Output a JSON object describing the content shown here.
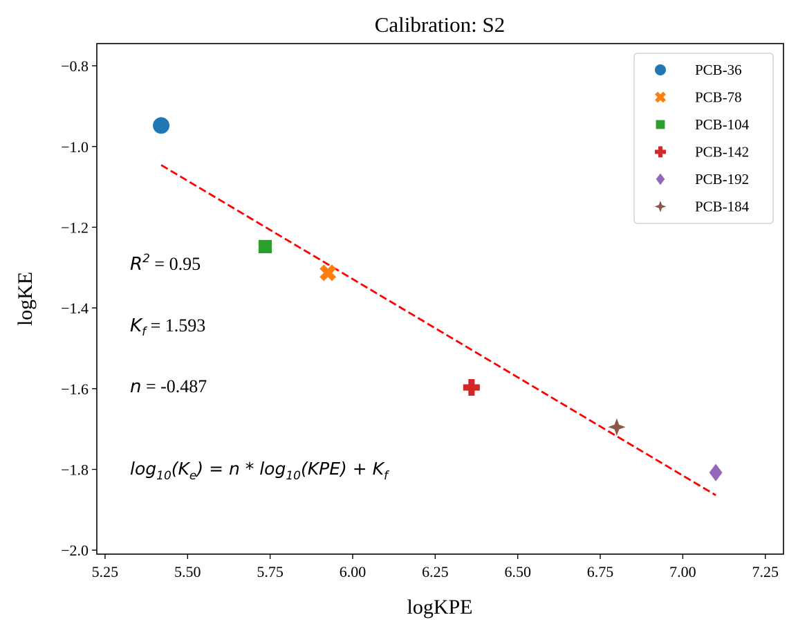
{
  "chart_data": {
    "type": "scatter",
    "title": "Calibration: S2",
    "xlabel": "logKPE",
    "ylabel": "logKE",
    "xlim": [
      5.225,
      7.305
    ],
    "ylim": [
      -2.01,
      -0.745
    ],
    "xticks": [
      5.25,
      5.5,
      5.75,
      6.0,
      6.25,
      6.5,
      6.75,
      7.0,
      7.25
    ],
    "xtick_labels": [
      "5.25",
      "5.50",
      "5.75",
      "6.00",
      "6.25",
      "6.50",
      "6.75",
      "7.00",
      "7.25"
    ],
    "yticks": [
      -0.8,
      -1.0,
      -1.2,
      -1.4,
      -1.6,
      -1.8,
      -2.0
    ],
    "ytick_labels": [
      "−0.8",
      "−1.0",
      "−1.2",
      "−1.4",
      "−1.6",
      "−1.8",
      "−2.0"
    ],
    "grid": false,
    "legend_position": "top-right",
    "series": [
      {
        "name": "PCB-36",
        "x": 5.42,
        "y": -0.948,
        "marker": "circle",
        "color": "#1f77b4"
      },
      {
        "name": "PCB-78",
        "x": 5.925,
        "y": -1.313,
        "marker": "x",
        "color": "#ff7f0e"
      },
      {
        "name": "PCB-104",
        "x": 5.735,
        "y": -1.248,
        "marker": "square",
        "color": "#2ca02c"
      },
      {
        "name": "PCB-142",
        "x": 6.36,
        "y": -1.597,
        "marker": "plus",
        "color": "#d62728"
      },
      {
        "name": "PCB-192",
        "x": 7.1,
        "y": -1.808,
        "marker": "diamond",
        "color": "#9467bd"
      },
      {
        "name": "PCB-184",
        "x": 6.8,
        "y": -1.695,
        "marker": "star",
        "color": "#8c564b"
      }
    ],
    "fit_line": {
      "x": [
        5.42,
        7.1
      ],
      "y": [
        -1.046,
        -1.864
      ],
      "style": "dashed",
      "color": "#ff0000"
    },
    "annotations": {
      "r2_value": " = 0.95",
      "kf_value": " = 1.593",
      "n_value": " = -0.487",
      "equation": "log10(Ke) = n * log10(KPE) + Kf"
    }
  }
}
